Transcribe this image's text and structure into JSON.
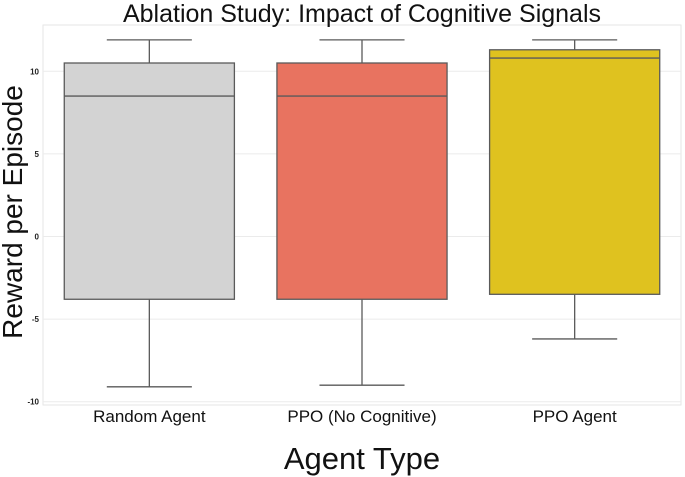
{
  "chart_data": {
    "type": "box",
    "title": "Ablation Study: Impact of Cognitive Signals",
    "xlabel": "Agent Type",
    "ylabel": "Reward per Episode",
    "ylim": [
      -10.2,
      12.8
    ],
    "yticks": [
      -10,
      -5,
      0,
      5,
      10
    ],
    "grid": true,
    "categories": [
      "Random Agent",
      "PPO (No Cognitive)",
      "PPO Agent"
    ],
    "boxes": [
      {
        "category": "Random Agent",
        "whisker_low": -9.1,
        "q1": -3.8,
        "median": 8.5,
        "q3": 10.5,
        "whisker_high": 11.9,
        "color": "#d3d3d3"
      },
      {
        "category": "PPO (No Cognitive)",
        "whisker_low": -9.0,
        "q1": -3.8,
        "median": 8.5,
        "q3": 10.5,
        "whisker_high": 11.9,
        "color": "#e87360"
      },
      {
        "category": "PPO Agent",
        "whisker_low": -6.2,
        "q1": -3.5,
        "median": 10.8,
        "q3": 11.3,
        "whisker_high": 11.9,
        "color": "#dfc21f"
      }
    ]
  }
}
